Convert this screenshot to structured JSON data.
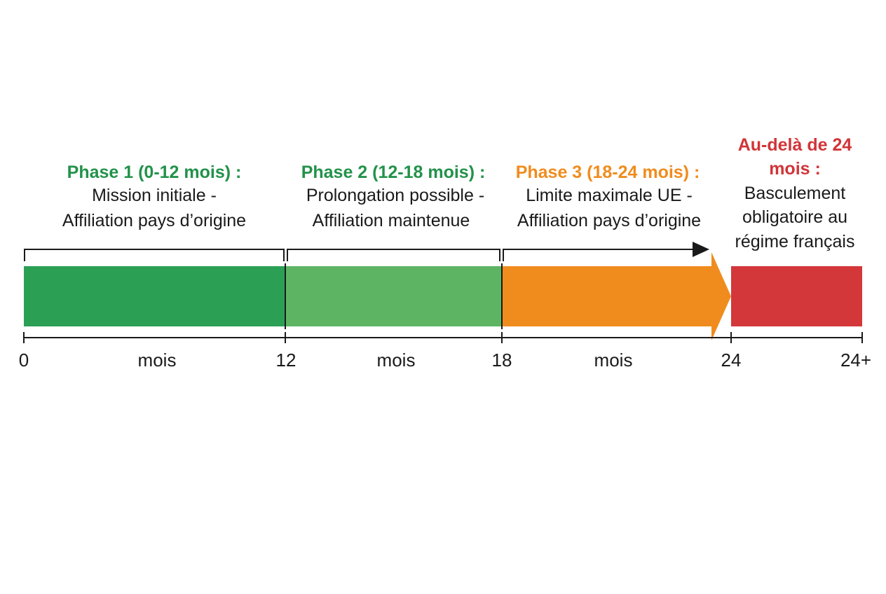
{
  "colors": {
    "phase1": "#2ba055",
    "phase2": "#5db564",
    "phase3": "#f08c1e",
    "beyond": "#d4373a",
    "title1": "#22924a",
    "title2": "#22924a",
    "title3": "#f08c1e",
    "title4": "#d13438",
    "line": "#1a1a1a"
  },
  "phases": [
    {
      "title": "Phase 1 (0-12 mois) :",
      "desc_line1": "Mission initiale -",
      "desc_line2": "Affiliation pays d’origine"
    },
    {
      "title": "Phase 2 (12-18 mois) :",
      "desc_line1": "Prolongation possible -",
      "desc_line2": "Affiliation maintenue"
    },
    {
      "title": "Phase 3 (18-24 mois) :",
      "desc_line1": "Limite maximale UE -",
      "desc_line2": "Affiliation pays d’origine"
    },
    {
      "title_line1": "Au-delà de 24",
      "title_line2": "mois :",
      "desc_line1": "Basculement",
      "desc_line2": "obligatoire au",
      "desc_line3": "régime français"
    }
  ],
  "axis": {
    "ticks": [
      "0",
      "12",
      "18",
      "24",
      "24+"
    ],
    "unit_labels": [
      "mois",
      "mois",
      "mois"
    ]
  }
}
